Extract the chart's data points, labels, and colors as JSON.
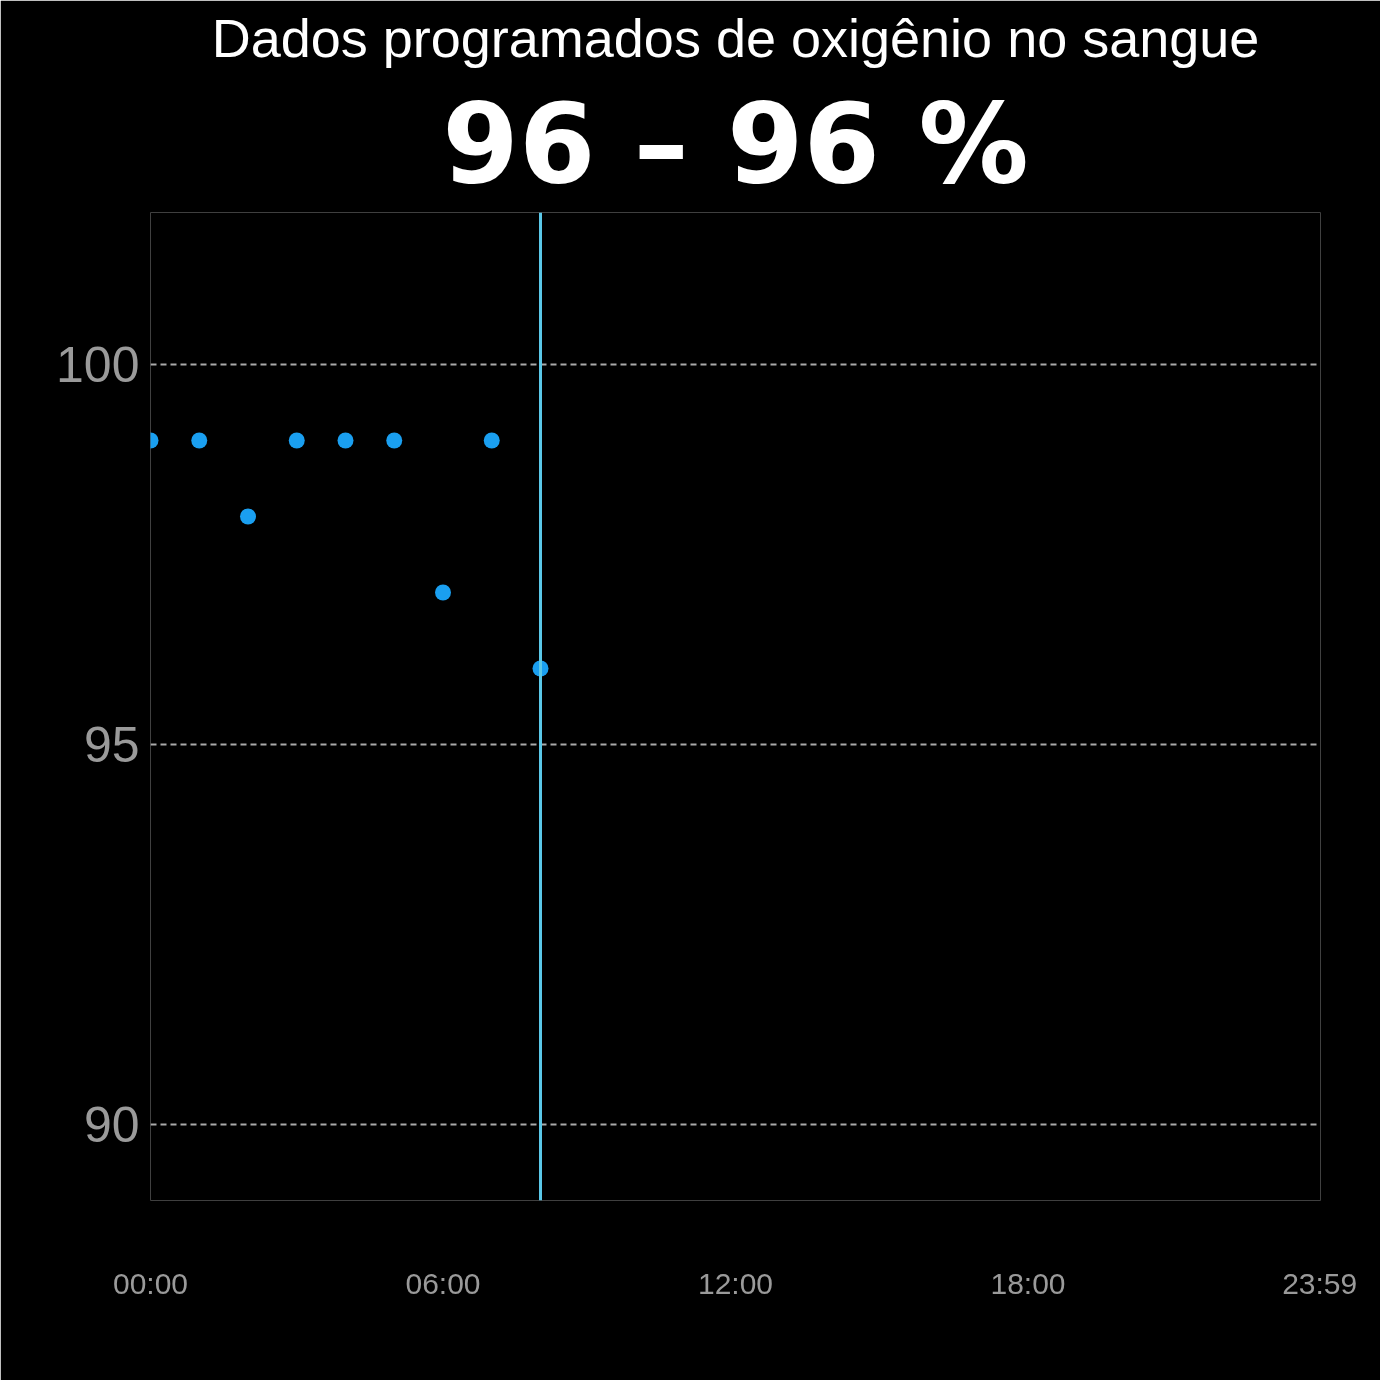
{
  "chart_data": {
    "type": "scatter",
    "title": "Dados programados de oxigênio no sangue",
    "subtitle": "96 – 96 %",
    "x": [
      0,
      1,
      2,
      3,
      4,
      5,
      6,
      7,
      8
    ],
    "series": [
      {
        "color": "#1a9ff0",
        "values": [
          99,
          99,
          98,
          99,
          99,
          99,
          97,
          99,
          96
        ]
      }
    ],
    "xlim": [
      0,
      24
    ],
    "xticks": [
      {
        "value": 0,
        "label": "00:00"
      },
      {
        "value": 6,
        "label": "06:00"
      },
      {
        "value": 12,
        "label": "12:00"
      },
      {
        "value": 18,
        "label": "18:00"
      },
      {
        "value": 23.983,
        "label": "23:59"
      }
    ],
    "ylim": [
      89,
      102
    ],
    "yticks": [
      90,
      95,
      100
    ],
    "grid": "y",
    "marker": "circle",
    "ref_lines": [
      {
        "axis": "x",
        "value": 8,
        "color": "#5bc8e8"
      }
    ]
  }
}
